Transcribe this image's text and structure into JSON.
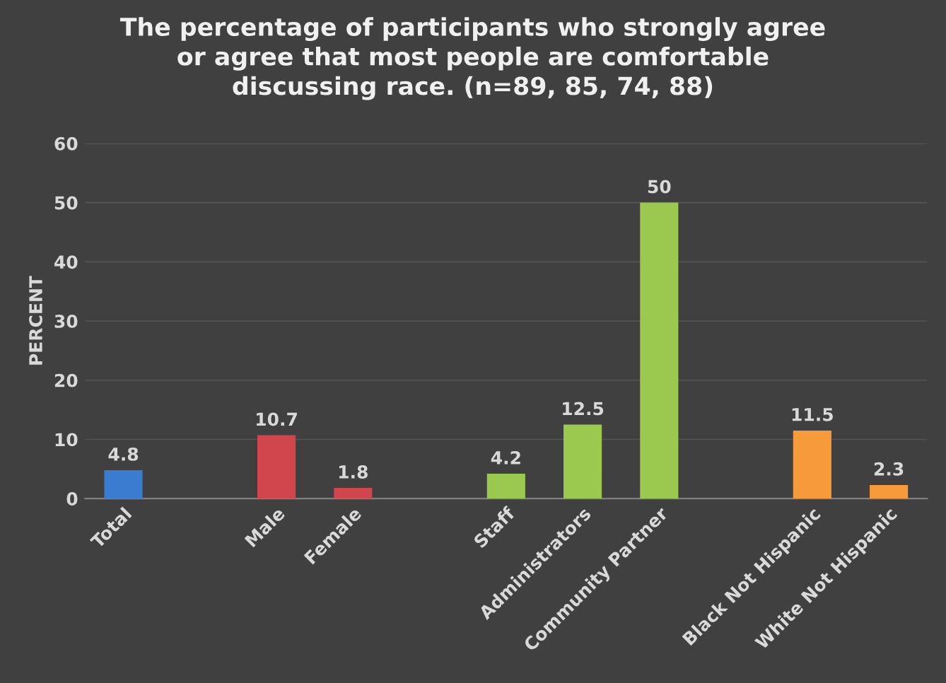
{
  "chart_data": {
    "type": "bar",
    "title": "The percentage of participants who strongly agree\nor agree that most people are comfortable\ndiscussing race. (n=89, 85, 74, 88)",
    "ylabel": "PERCENT",
    "categories": [
      "Total",
      null,
      "Male",
      "Female",
      null,
      "Staff",
      "Administrators",
      "Community Partner",
      null,
      "Black Not Hispanic",
      "White Not Hispanic"
    ],
    "values": [
      4.8,
      null,
      10.7,
      1.8,
      null,
      4.2,
      12.5,
      50,
      null,
      11.5,
      2.3
    ],
    "colors": [
      "#3a7dd0",
      null,
      "#d0464c",
      "#d0464c",
      null,
      "#9bc84f",
      "#9bc84f",
      "#9bc84f",
      null,
      "#f79a3c",
      "#f79a3c"
    ],
    "ylim": [
      0,
      60
    ],
    "yticks": [
      0,
      10,
      20,
      30,
      40,
      50,
      60
    ],
    "grid": "y",
    "data_labels": true
  }
}
